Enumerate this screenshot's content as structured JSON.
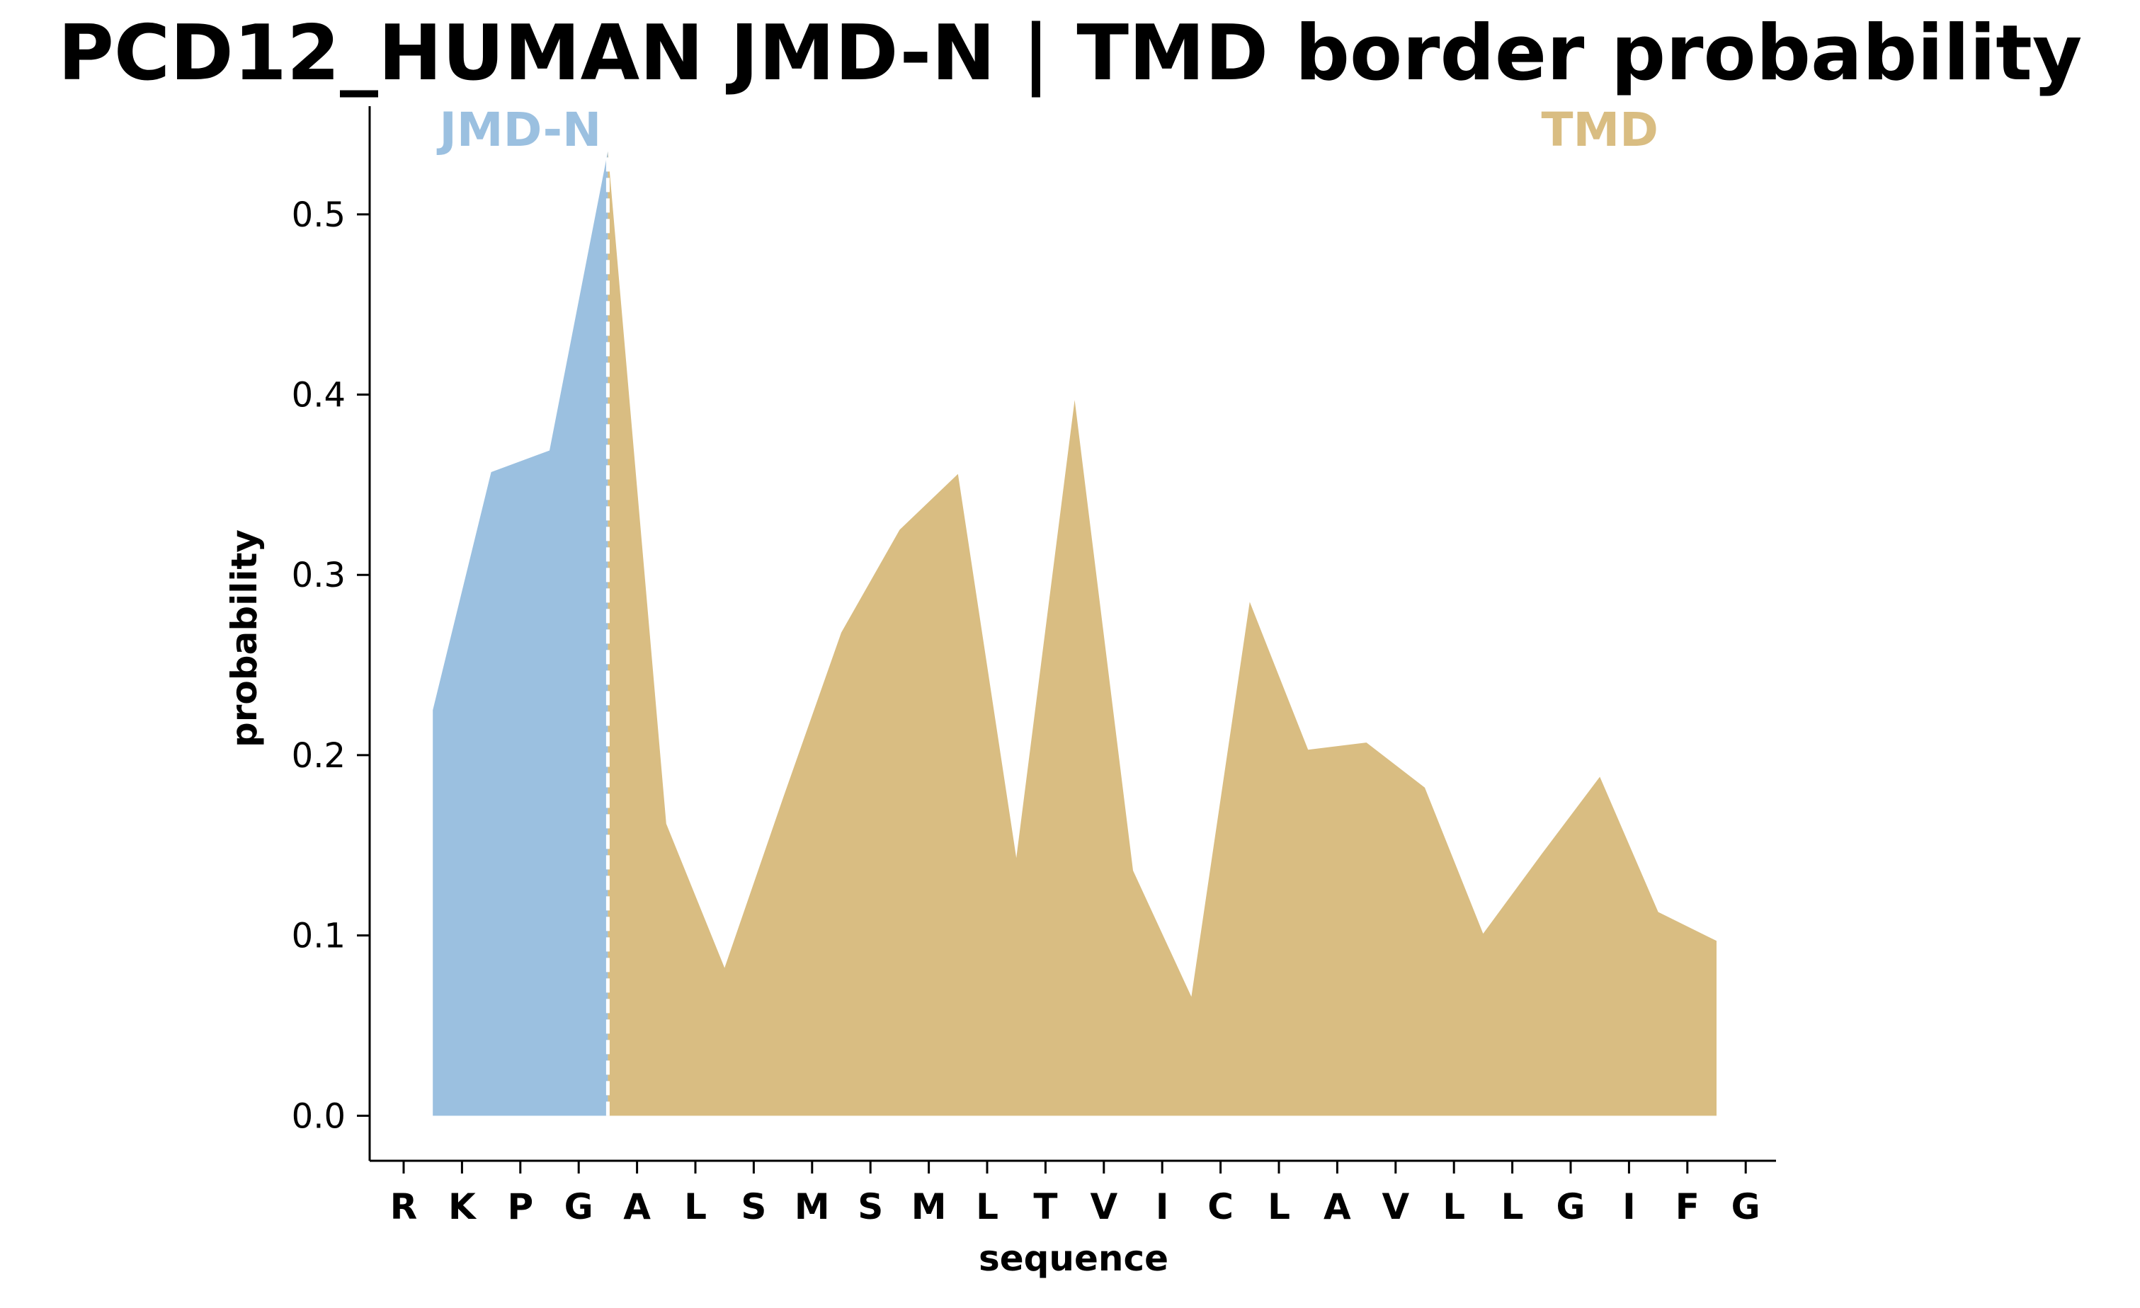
{
  "chart_data": {
    "type": "area",
    "title": "PCD12_HUMAN JMD-N | TMD border probability",
    "xlabel": "sequence",
    "ylabel": "probability",
    "categories": [
      "R",
      "K",
      "P",
      "G",
      "A",
      "L",
      "S",
      "M",
      "S",
      "M",
      "L",
      "T",
      "V",
      "I",
      "C",
      "L",
      "A",
      "V",
      "L",
      "L",
      "G",
      "I",
      "F",
      "G"
    ],
    "ylim": [
      -0.025,
      0.56
    ],
    "yticks": [
      0.0,
      0.1,
      0.2,
      0.3,
      0.4,
      0.5
    ],
    "ytick_labels": [
      "0.0",
      "0.1",
      "0.2",
      "0.3",
      "0.4",
      "0.5"
    ],
    "grid": false,
    "border_position": 3.5,
    "series": [
      {
        "name": "JMD-N",
        "color": "#9bc0e0",
        "x": [
          0.5,
          1.5,
          2.5,
          3.5
        ],
        "values": [
          0.225,
          0.357,
          0.369,
          0.535
        ]
      },
      {
        "name": "TMD",
        "color": "#d9bd82",
        "x": [
          3.5,
          4.5,
          5.5,
          6.5,
          7.5,
          8.5,
          9.5,
          10.5,
          11.5,
          12.5,
          13.5,
          14.5,
          15.5,
          16.5,
          17.5,
          18.5,
          19.5,
          20.5,
          21.5,
          22.5
        ],
        "values": [
          0.535,
          0.162,
          0.082,
          0.176,
          0.268,
          0.325,
          0.356,
          0.143,
          0.397,
          0.136,
          0.066,
          0.285,
          0.203,
          0.207,
          0.182,
          0.101,
          0.145,
          0.188,
          0.113,
          0.097
        ]
      }
    ],
    "annotations": [
      {
        "text": "JMD-N",
        "color": "#9bc0e0",
        "x": 2.0
      },
      {
        "text": "TMD",
        "color": "#d9bd82",
        "x": 20.5
      }
    ]
  }
}
